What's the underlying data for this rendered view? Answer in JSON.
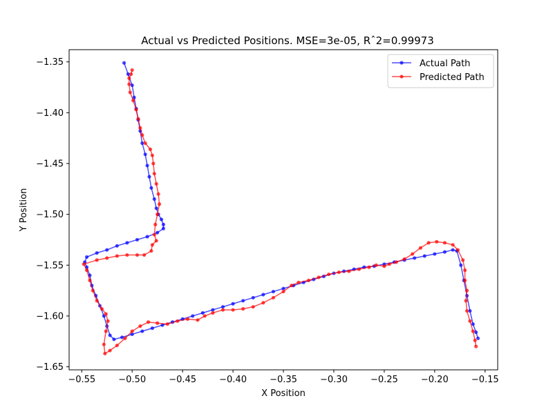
{
  "chart_data": {
    "type": "line",
    "title": "Actual vs Predicted Positions. MSE=3e-05, Rˆ2=0.99973",
    "xlabel": "X Position",
    "ylabel": "Y Position",
    "xlim": [
      -0.5625,
      -0.1375
    ],
    "ylim": [
      -1.653,
      -1.338
    ],
    "xticks": [
      -0.55,
      -0.5,
      -0.45,
      -0.4,
      -0.35,
      -0.3,
      -0.25,
      -0.2,
      -0.15
    ],
    "xtick_labels": [
      "−0.55",
      "−0.50",
      "−0.45",
      "−0.40",
      "−0.35",
      "−0.30",
      "−0.25",
      "−0.20",
      "−0.15"
    ],
    "yticks": [
      -1.35,
      -1.4,
      -1.45,
      -1.5,
      -1.55,
      -1.6,
      -1.65
    ],
    "ytick_labels": [
      "−1.35",
      "−1.40",
      "−1.45",
      "−1.50",
      "−1.55",
      "−1.60",
      "−1.65"
    ],
    "grid": false,
    "legend_position": "upper right",
    "series": [
      {
        "name": "Actual Path",
        "color": "#0000ff",
        "alpha": 0.7,
        "marker": "dot",
        "points": [
          [
            -0.508,
            -1.351
          ],
          [
            -0.504,
            -1.362
          ],
          [
            -0.5,
            -1.373
          ],
          [
            -0.498,
            -1.385
          ],
          [
            -0.496,
            -1.396
          ],
          [
            -0.494,
            -1.407
          ],
          [
            -0.492,
            -1.418
          ],
          [
            -0.49,
            -1.43
          ],
          [
            -0.487,
            -1.441
          ],
          [
            -0.485,
            -1.452
          ],
          [
            -0.483,
            -1.463
          ],
          [
            -0.481,
            -1.474
          ],
          [
            -0.478,
            -1.485
          ],
          [
            -0.476,
            -1.494
          ],
          [
            -0.474,
            -1.5
          ],
          [
            -0.471,
            -1.505
          ],
          [
            -0.469,
            -1.51
          ],
          [
            -0.469,
            -1.514
          ],
          [
            -0.475,
            -1.518
          ],
          [
            -0.485,
            -1.522
          ],
          [
            -0.495,
            -1.525
          ],
          [
            -0.505,
            -1.528
          ],
          [
            -0.515,
            -1.531
          ],
          [
            -0.525,
            -1.535
          ],
          [
            -0.535,
            -1.538
          ],
          [
            -0.545,
            -1.542
          ],
          [
            -0.547,
            -1.547
          ],
          [
            -0.545,
            -1.552
          ],
          [
            -0.542,
            -1.56
          ],
          [
            -0.54,
            -1.57
          ],
          [
            -0.536,
            -1.58
          ],
          [
            -0.532,
            -1.59
          ],
          [
            -0.528,
            -1.6
          ],
          [
            -0.525,
            -1.61
          ],
          [
            -0.522,
            -1.619
          ],
          [
            -0.518,
            -1.623
          ],
          [
            -0.51,
            -1.621
          ],
          [
            -0.5,
            -1.618
          ],
          [
            -0.49,
            -1.615
          ],
          [
            -0.48,
            -1.612
          ],
          [
            -0.47,
            -1.609
          ],
          [
            -0.46,
            -1.606
          ],
          [
            -0.45,
            -1.603
          ],
          [
            -0.44,
            -1.6
          ],
          [
            -0.43,
            -1.597
          ],
          [
            -0.42,
            -1.594
          ],
          [
            -0.41,
            -1.591
          ],
          [
            -0.4,
            -1.588
          ],
          [
            -0.39,
            -1.585
          ],
          [
            -0.38,
            -1.582
          ],
          [
            -0.37,
            -1.579
          ],
          [
            -0.36,
            -1.576
          ],
          [
            -0.35,
            -1.573
          ],
          [
            -0.34,
            -1.57
          ],
          [
            -0.33,
            -1.567
          ],
          [
            -0.32,
            -1.564
          ],
          [
            -0.31,
            -1.561
          ],
          [
            -0.3,
            -1.558
          ],
          [
            -0.29,
            -1.556
          ],
          [
            -0.28,
            -1.554
          ],
          [
            -0.27,
            -1.552
          ],
          [
            -0.26,
            -1.551
          ],
          [
            -0.25,
            -1.549
          ],
          [
            -0.24,
            -1.547
          ],
          [
            -0.23,
            -1.545
          ],
          [
            -0.22,
            -1.543
          ],
          [
            -0.21,
            -1.541
          ],
          [
            -0.2,
            -1.539
          ],
          [
            -0.19,
            -1.537
          ],
          [
            -0.182,
            -1.535
          ],
          [
            -0.178,
            -1.536
          ],
          [
            -0.174,
            -1.55
          ],
          [
            -0.171,
            -1.565
          ],
          [
            -0.168,
            -1.58
          ],
          [
            -0.165,
            -1.595
          ],
          [
            -0.162,
            -1.608
          ],
          [
            -0.159,
            -1.616
          ],
          [
            -0.157,
            -1.622
          ]
        ]
      },
      {
        "name": "Predicted Path",
        "color": "#ff0000",
        "alpha": 0.7,
        "marker": "dot",
        "points": [
          [
            -0.5,
            -1.358
          ],
          [
            -0.501,
            -1.362
          ],
          [
            -0.503,
            -1.366
          ],
          [
            -0.503,
            -1.372
          ],
          [
            -0.502,
            -1.38
          ],
          [
            -0.499,
            -1.388
          ],
          [
            -0.496,
            -1.397
          ],
          [
            -0.494,
            -1.406
          ],
          [
            -0.492,
            -1.415
          ],
          [
            -0.49,
            -1.422
          ],
          [
            -0.487,
            -1.43
          ],
          [
            -0.482,
            -1.436
          ],
          [
            -0.48,
            -1.442
          ],
          [
            -0.479,
            -1.45
          ],
          [
            -0.478,
            -1.46
          ],
          [
            -0.476,
            -1.47
          ],
          [
            -0.474,
            -1.48
          ],
          [
            -0.473,
            -1.49
          ],
          [
            -0.475,
            -1.5
          ],
          [
            -0.477,
            -1.51
          ],
          [
            -0.478,
            -1.52
          ],
          [
            -0.476,
            -1.526
          ],
          [
            -0.48,
            -1.53
          ],
          [
            -0.481,
            -1.536
          ],
          [
            -0.488,
            -1.54
          ],
          [
            -0.495,
            -1.54
          ],
          [
            -0.505,
            -1.54
          ],
          [
            -0.515,
            -1.541
          ],
          [
            -0.525,
            -1.543
          ],
          [
            -0.535,
            -1.545
          ],
          [
            -0.548,
            -1.549
          ],
          [
            -0.545,
            -1.555
          ],
          [
            -0.542,
            -1.565
          ],
          [
            -0.539,
            -1.575
          ],
          [
            -0.535,
            -1.585
          ],
          [
            -0.53,
            -1.593
          ],
          [
            -0.526,
            -1.598
          ],
          [
            -0.524,
            -1.605
          ],
          [
            -0.526,
            -1.615
          ],
          [
            -0.528,
            -1.628
          ],
          [
            -0.527,
            -1.637
          ],
          [
            -0.522,
            -1.634
          ],
          [
            -0.515,
            -1.629
          ],
          [
            -0.507,
            -1.622
          ],
          [
            -0.5,
            -1.615
          ],
          [
            -0.492,
            -1.61
          ],
          [
            -0.484,
            -1.606
          ],
          [
            -0.475,
            -1.607
          ],
          [
            -0.465,
            -1.608
          ],
          [
            -0.455,
            -1.605
          ],
          [
            -0.445,
            -1.603
          ],
          [
            -0.435,
            -1.604
          ],
          [
            -0.428,
            -1.6
          ],
          [
            -0.42,
            -1.597
          ],
          [
            -0.41,
            -1.594
          ],
          [
            -0.4,
            -1.594
          ],
          [
            -0.39,
            -1.593
          ],
          [
            -0.38,
            -1.591
          ],
          [
            -0.37,
            -1.587
          ],
          [
            -0.36,
            -1.582
          ],
          [
            -0.35,
            -1.576
          ],
          [
            -0.342,
            -1.57
          ],
          [
            -0.335,
            -1.567
          ],
          [
            -0.325,
            -1.565
          ],
          [
            -0.315,
            -1.562
          ],
          [
            -0.305,
            -1.559
          ],
          [
            -0.295,
            -1.557
          ],
          [
            -0.285,
            -1.556
          ],
          [
            -0.275,
            -1.554
          ],
          [
            -0.265,
            -1.552
          ],
          [
            -0.258,
            -1.55
          ],
          [
            -0.25,
            -1.551
          ],
          [
            -0.245,
            -1.549
          ],
          [
            -0.238,
            -1.547
          ],
          [
            -0.23,
            -1.544
          ],
          [
            -0.222,
            -1.539
          ],
          [
            -0.214,
            -1.533
          ],
          [
            -0.206,
            -1.528
          ],
          [
            -0.198,
            -1.527
          ],
          [
            -0.19,
            -1.528
          ],
          [
            -0.182,
            -1.53
          ],
          [
            -0.177,
            -1.535
          ],
          [
            -0.172,
            -1.545
          ],
          [
            -0.17,
            -1.555
          ],
          [
            -0.17,
            -1.565
          ],
          [
            -0.168,
            -1.575
          ],
          [
            -0.169,
            -1.585
          ],
          [
            -0.168,
            -1.595
          ],
          [
            -0.165,
            -1.605
          ],
          [
            -0.162,
            -1.615
          ],
          [
            -0.16,
            -1.624
          ],
          [
            -0.159,
            -1.63
          ]
        ]
      }
    ]
  }
}
